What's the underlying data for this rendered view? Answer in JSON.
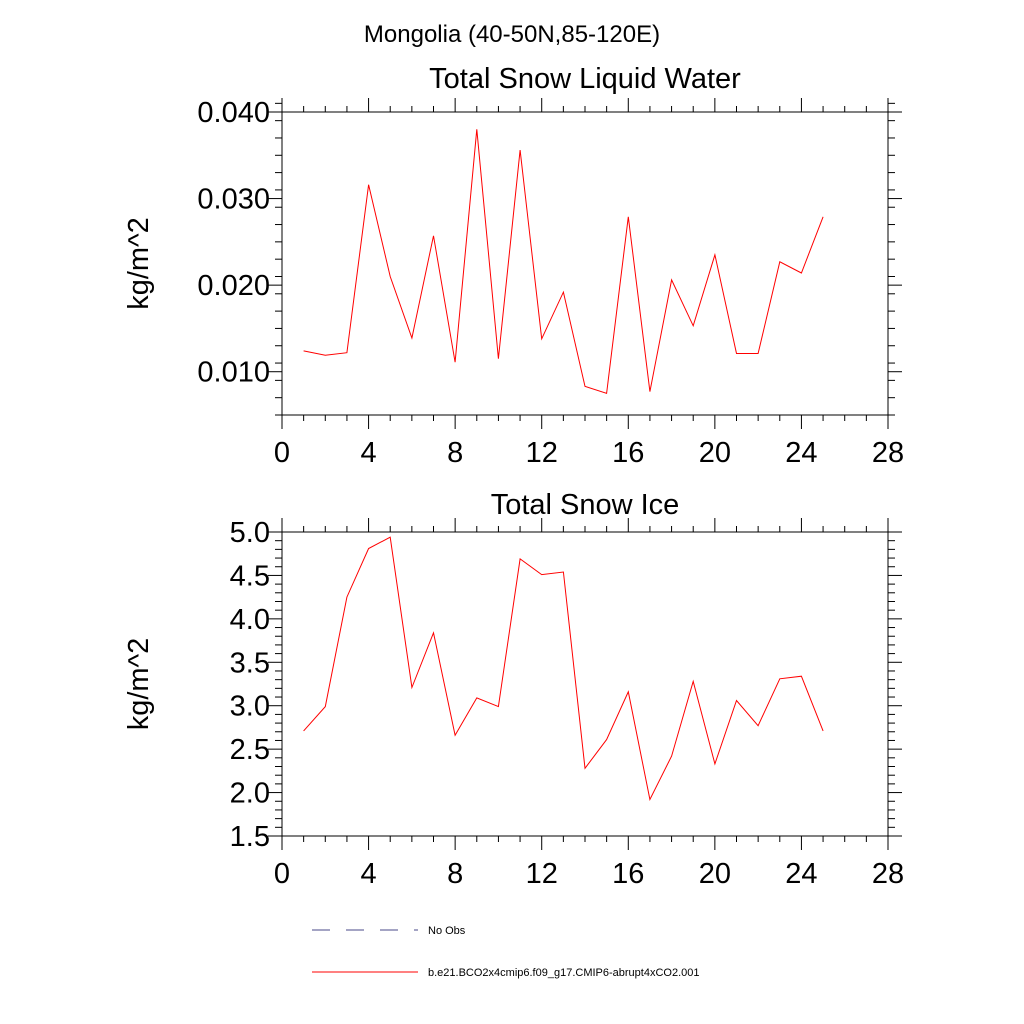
{
  "figure": {
    "supertitle": "Mongolia (40-50N,85-120E)"
  },
  "colors": {
    "model_line": "#ff0000",
    "obs_line": "#4a4a8a",
    "axis": "#000000"
  },
  "legend": {
    "obs_label": "No Obs",
    "model_label": "b.e21.BCO2x4cmip6.f09_g17.CMIP6-abrupt4xCO2.001"
  },
  "chart_data": [
    {
      "type": "line",
      "title": "Total Snow Liquid Water",
      "xlabel": "",
      "ylabel": "kg/m^2",
      "xlim": [
        0,
        28
      ],
      "ylim": [
        0.005,
        0.04
      ],
      "xticks": [
        0,
        4,
        8,
        12,
        16,
        20,
        24,
        28
      ],
      "xtick_labels": [
        "0",
        "4",
        "8",
        "12",
        "16",
        "20",
        "24",
        "28"
      ],
      "yticks": [
        0.01,
        0.02,
        0.03,
        0.04
      ],
      "ytick_labels": [
        "0.010",
        "0.020",
        "0.030",
        "0.040"
      ],
      "grid": false,
      "series": [
        {
          "name": "b.e21.BCO2x4cmip6.f09_g17.CMIP6-abrupt4xCO2.001",
          "x": [
            1,
            2,
            3,
            4,
            5,
            6,
            7,
            8,
            9,
            10,
            11,
            12,
            13,
            14,
            15,
            16,
            17,
            18,
            19,
            20,
            21,
            22,
            23,
            24,
            25
          ],
          "values": [
            0.0124,
            0.0119,
            0.0122,
            0.0316,
            0.021,
            0.0139,
            0.0257,
            0.0111,
            0.038,
            0.0115,
            0.0356,
            0.0138,
            0.0192,
            0.0083,
            0.0075,
            0.0279,
            0.0077,
            0.0206,
            0.0153,
            0.0235,
            0.0121,
            0.0121,
            0.0227,
            0.0214,
            0.0279
          ]
        }
      ]
    },
    {
      "type": "line",
      "title": "Total Snow Ice",
      "xlabel": "",
      "ylabel": "kg/m^2",
      "xlim": [
        0,
        28
      ],
      "ylim": [
        1.5,
        5.0
      ],
      "xticks": [
        0,
        4,
        8,
        12,
        16,
        20,
        24,
        28
      ],
      "xtick_labels": [
        "0",
        "4",
        "8",
        "12",
        "16",
        "20",
        "24",
        "28"
      ],
      "yticks": [
        1.5,
        2.0,
        2.5,
        3.0,
        3.5,
        4.0,
        4.5,
        5.0
      ],
      "ytick_labels": [
        "1.5",
        "2.0",
        "2.5",
        "3.0",
        "3.5",
        "4.0",
        "4.5",
        "5.0"
      ],
      "grid": false,
      "series": [
        {
          "name": "b.e21.BCO2x4cmip6.f09_g17.CMIP6-abrupt4xCO2.001",
          "x": [
            1,
            2,
            3,
            4,
            5,
            6,
            7,
            8,
            9,
            10,
            11,
            12,
            13,
            14,
            15,
            16,
            17,
            18,
            19,
            20,
            21,
            22,
            23,
            24,
            25
          ],
          "values": [
            2.71,
            2.99,
            4.25,
            4.81,
            4.94,
            3.21,
            3.84,
            2.66,
            3.09,
            2.99,
            4.69,
            4.51,
            4.54,
            2.28,
            2.61,
            3.16,
            1.92,
            2.42,
            3.28,
            2.33,
            3.06,
            2.77,
            3.31,
            3.34,
            2.71
          ]
        }
      ]
    }
  ]
}
